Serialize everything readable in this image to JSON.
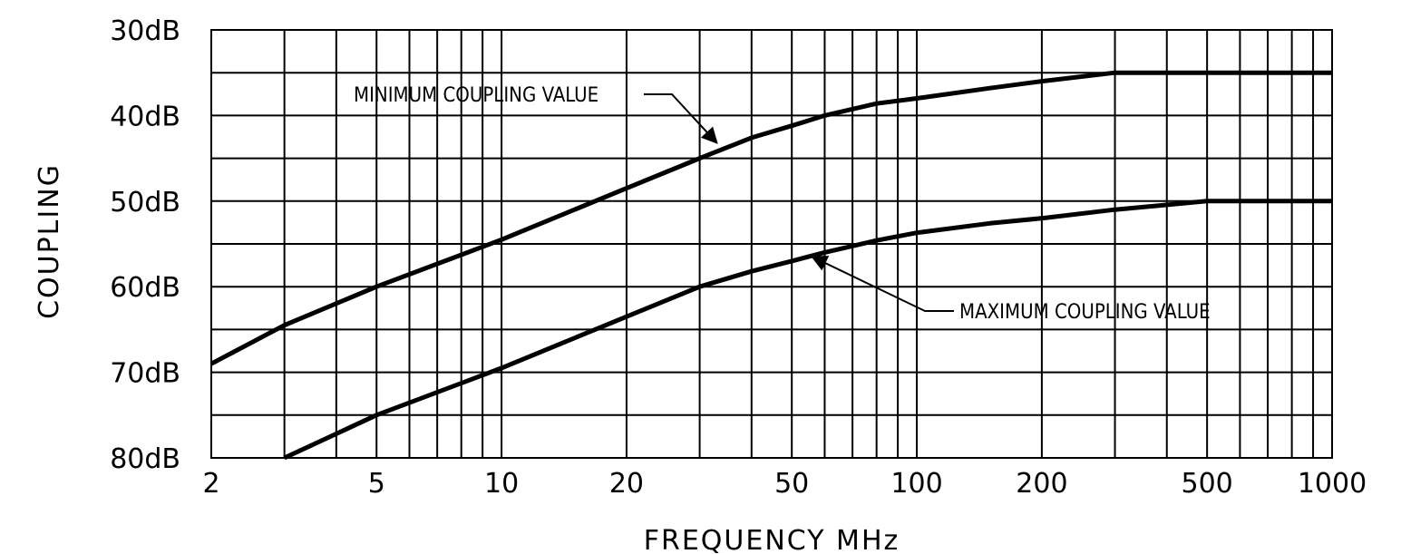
{
  "chart_data": {
    "type": "line",
    "xlabel": "FREQUENCY  MHz",
    "ylabel": "COUPLING",
    "x_scale": "log",
    "xlim": [
      2,
      1000
    ],
    "ylim": [
      30,
      80
    ],
    "y_inverted": true,
    "grid": true,
    "x_ticks": [
      {
        "value": 2,
        "label": "2"
      },
      {
        "value": 5,
        "label": "5"
      },
      {
        "value": 10,
        "label": "10"
      },
      {
        "value": 20,
        "label": "20"
      },
      {
        "value": 50,
        "label": "50"
      },
      {
        "value": 100,
        "label": "100"
      },
      {
        "value": 200,
        "label": "200"
      },
      {
        "value": 500,
        "label": "500"
      },
      {
        "value": 1000,
        "label": "1000"
      }
    ],
    "y_ticks": [
      {
        "value": 30,
        "label": "30dB"
      },
      {
        "value": 40,
        "label": "40dB"
      },
      {
        "value": 50,
        "label": "50dB"
      },
      {
        "value": 60,
        "label": "60dB"
      },
      {
        "value": 70,
        "label": "70dB"
      },
      {
        "value": 80,
        "label": "80dB"
      }
    ],
    "series": [
      {
        "name": "MINIMUM COUPLING VALUE",
        "points": [
          [
            2,
            69
          ],
          [
            3,
            64.5
          ],
          [
            5,
            60
          ],
          [
            10,
            54.5
          ],
          [
            20,
            48.5
          ],
          [
            30,
            45
          ],
          [
            40,
            42.6
          ],
          [
            50,
            41.2
          ],
          [
            60,
            40
          ],
          [
            80,
            38.6
          ],
          [
            100,
            38
          ],
          [
            150,
            36.8
          ],
          [
            200,
            36
          ],
          [
            300,
            35
          ],
          [
            1000,
            35
          ]
        ]
      },
      {
        "name": "MAXIMUM COUPLING VALUE",
        "points": [
          [
            3,
            80
          ],
          [
            5,
            75
          ],
          [
            10,
            69.5
          ],
          [
            20,
            63.5
          ],
          [
            30,
            60
          ],
          [
            40,
            58.2
          ],
          [
            50,
            57
          ],
          [
            60,
            56
          ],
          [
            80,
            54.6
          ],
          [
            100,
            53.7
          ],
          [
            150,
            52.6
          ],
          [
            200,
            52
          ],
          [
            300,
            51
          ],
          [
            500,
            50
          ],
          [
            1000,
            50
          ]
        ]
      }
    ],
    "annotations": [
      {
        "text": "MINIMUM COUPLING VALUE",
        "series": "MINIMUM COUPLING VALUE",
        "x": 33,
        "y": 43.2
      },
      {
        "text": "MAXIMUM COUPLING VALUE",
        "series": "MAXIMUM COUPLING VALUE",
        "x": 56,
        "y": 56.5
      }
    ]
  }
}
